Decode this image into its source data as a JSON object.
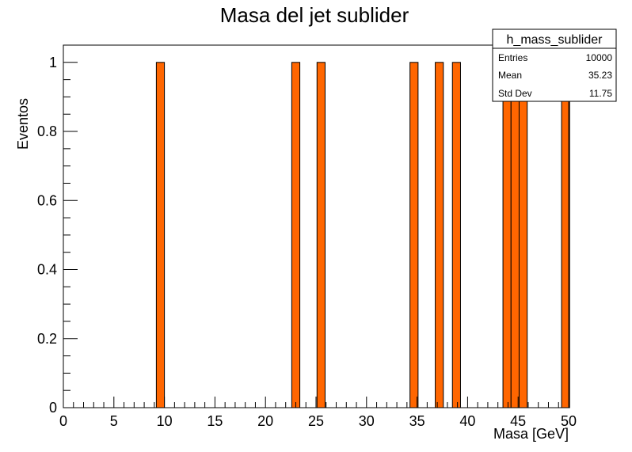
{
  "chart_data": {
    "type": "bar",
    "title": "Masa del jet sublider",
    "xlabel": "Masa [GeV]",
    "ylabel": "Eventos",
    "xlim": [
      0,
      50
    ],
    "ylim": [
      0,
      1.05
    ],
    "bin_width": 0.8,
    "x_ticks": [
      "0",
      "5",
      "10",
      "15",
      "20",
      "25",
      "30",
      "35",
      "40",
      "45",
      "50"
    ],
    "y_ticks": [
      "0",
      "0.2",
      "0.4",
      "0.6",
      "0.8",
      "1"
    ],
    "bars": [
      {
        "x": 9.2,
        "value": 1
      },
      {
        "x": 22.6,
        "value": 1
      },
      {
        "x": 25.1,
        "value": 1
      },
      {
        "x": 34.3,
        "value": 1
      },
      {
        "x": 36.8,
        "value": 1
      },
      {
        "x": 38.5,
        "value": 1
      },
      {
        "x": 43.5,
        "value": 1
      },
      {
        "x": 44.3,
        "value": 1
      },
      {
        "x": 45.1,
        "value": 1
      },
      {
        "x": 49.3,
        "value": 1
      }
    ],
    "fill_color": "#ff6600",
    "grid": false,
    "legend": "none",
    "stats_box": {
      "name": "h_mass_sublider",
      "rows": [
        {
          "label": "Entries",
          "value": "10000"
        },
        {
          "label": "Mean",
          "value": "35.23"
        },
        {
          "label": "Std Dev",
          "value": "11.75"
        }
      ],
      "placement": "top-right"
    }
  }
}
